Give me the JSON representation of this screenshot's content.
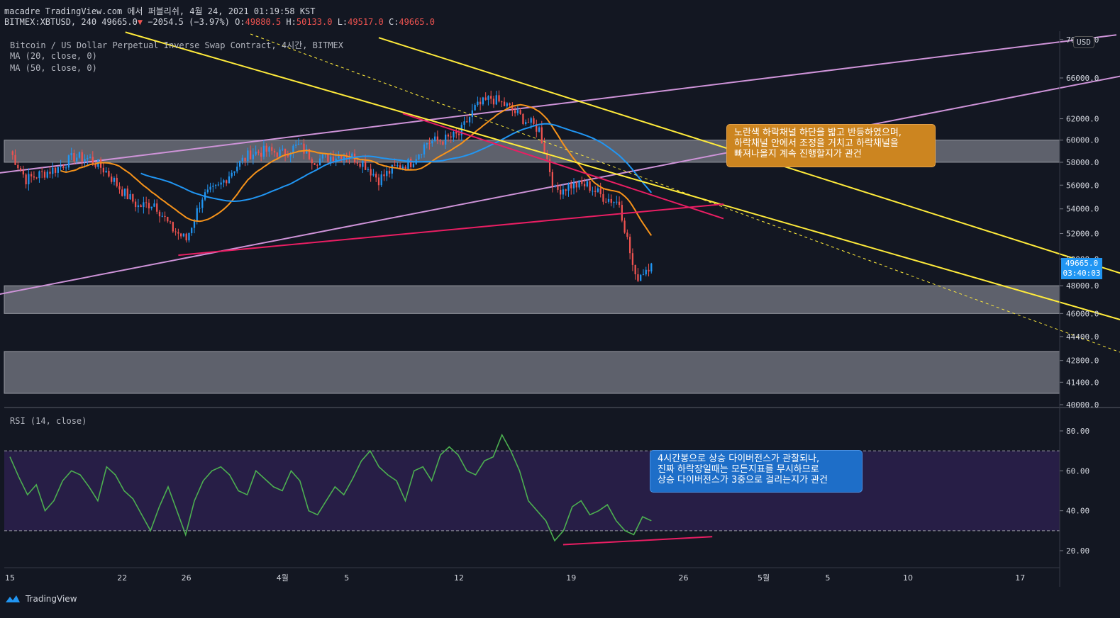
{
  "header": {
    "line1": "macadre TradingView.com 에서 퍼블리쉬, 4월 24, 2021 01:19:58 KST",
    "symbol": "BITMEX:XBTUSD, 240",
    "last": "49665.0",
    "arrow": "▼",
    "change": "−2054.5 (−3.97%)",
    "o_label": "O:",
    "o_val": "49880.5",
    "h_label": "H:",
    "h_val": "50133.0",
    "l_label": "L:",
    "l_val": "49517.0",
    "c_label": "C:",
    "c_val": "49665.0"
  },
  "legend": {
    "title": "Bitcoin / US Dollar Perpetual Inverse Swap Contract, 4시간, BITMEX",
    "ma20": "MA (20, close, 0)",
    "ma50": "MA (50, close, 0)",
    "rsi": "RSI (14, close)"
  },
  "price_tag": {
    "price": "49665.0",
    "countdown": "03:40:03"
  },
  "currency": "USD",
  "annotations": {
    "upper": [
      "노란색 하락채널 하단을 밟고 반등하였으며,",
      "하락채널 안에서 조정을 거치고 하락채널을",
      "빠져나올지 계속 진행할지가 관건"
    ],
    "lower": [
      "4시간봉으로 상승 다이버전스가 관찰되나,",
      "진짜 하락장일때는 모든지표를 무시하므로",
      "상승 다이버전스가 3중으로 걸리는지가 관건"
    ]
  },
  "footer": {
    "brand": "TradingView"
  },
  "colors": {
    "background": "#131722",
    "up": "#26a69a",
    "down": "#ef5350",
    "candle_up": "#2196f3",
    "candle_down": "#ef5350",
    "ma20": "#f7931a",
    "ma50": "#2196f3",
    "channel": "#ffeb3b",
    "wedge": "#e91e63",
    "trend": "#ce93d8",
    "zone": "#787b86",
    "rsi": "#4caf50",
    "rsi_band": "#2a1f4a"
  },
  "chart_data": [
    {
      "type": "candlestick",
      "title": "Bitcoin / US Dollar Perpetual Inverse Swap Contract, 4시간, BITMEX",
      "y_ticks": [
        "70000.0",
        "66000.0",
        "62000.0",
        "60000.0",
        "58000.0",
        "56000.0",
        "54000.0",
        "52000.0",
        "50000.0",
        "48000.0",
        "46000.0",
        "44400.0",
        "42800.0",
        "41400.0",
        "40000.0"
      ],
      "x_ticks": [
        "15",
        "22",
        "26",
        "4월",
        "5",
        "12",
        "19",
        "26",
        "5월",
        "5",
        "10",
        "17"
      ],
      "ylim": [
        40000,
        70000
      ],
      "y_scale": "log",
      "last_price": 49665.0,
      "zones": [
        [
          58000,
          60000
        ],
        [
          46000,
          48000
        ],
        [
          40700,
          43400
        ]
      ],
      "close_path": [
        [
          "03-15",
          59000
        ],
        [
          "03-16",
          56500
        ],
        [
          "03-17",
          57000
        ],
        [
          "03-18",
          57500
        ],
        [
          "03-19",
          58500
        ],
        [
          "03-20",
          58300
        ],
        [
          "03-21",
          57200
        ],
        [
          "03-22",
          55500
        ],
        [
          "03-23",
          54200
        ],
        [
          "03-24",
          54500
        ],
        [
          "03-25",
          52500
        ],
        [
          "03-26",
          51500
        ],
        [
          "03-27",
          55000
        ],
        [
          "03-28",
          55800
        ],
        [
          "03-29",
          57500
        ],
        [
          "03-30",
          58800
        ],
        [
          "03-31",
          59000
        ],
        [
          "04-01",
          58800
        ],
        [
          "04-02",
          59500
        ],
        [
          "04-03",
          58200
        ],
        [
          "04-04",
          58500
        ],
        [
          "04-05",
          58700
        ],
        [
          "04-06",
          58000
        ],
        [
          "04-07",
          56500
        ],
        [
          "04-08",
          57500
        ],
        [
          "04-09",
          58000
        ],
        [
          "04-10",
          59800
        ],
        [
          "04-11",
          60000
        ],
        [
          "04-12",
          60500
        ],
        [
          "04-13",
          63000
        ],
        [
          "04-14",
          64000
        ],
        [
          "04-15",
          63200
        ],
        [
          "04-16",
          62000
        ],
        [
          "04-17",
          61000
        ],
        [
          "04-18",
          55500
        ],
        [
          "04-19",
          56000
        ],
        [
          "04-20",
          56000
        ],
        [
          "04-21",
          55000
        ],
        [
          "04-22",
          54500
        ],
        [
          "04-23",
          48500
        ],
        [
          "04-24",
          49665
        ]
      ]
    },
    {
      "type": "line",
      "title": "RSI (14, close)",
      "y_ticks": [
        "80.00",
        "60.00",
        "40.00",
        "20.00"
      ],
      "ylim": [
        15,
        90
      ],
      "bands": [
        30,
        70
      ],
      "series": [
        {
          "name": "RSI",
          "values": [
            67,
            57,
            48,
            53,
            40,
            45,
            55,
            60,
            58,
            52,
            45,
            62,
            58,
            50,
            46,
            38,
            30,
            42,
            52,
            40,
            28,
            45,
            55,
            60,
            62,
            58,
            50,
            48,
            60,
            56,
            52,
            50,
            60,
            55,
            40,
            38,
            45,
            52,
            48,
            56,
            65,
            70,
            62,
            58,
            55,
            45,
            60,
            62,
            55,
            68,
            72,
            68,
            60,
            58,
            65,
            67,
            78,
            70,
            60,
            45,
            40,
            35,
            25,
            30,
            42,
            45,
            38,
            40,
            43,
            35,
            30,
            28,
            37,
            35
          ]
        }
      ]
    }
  ]
}
